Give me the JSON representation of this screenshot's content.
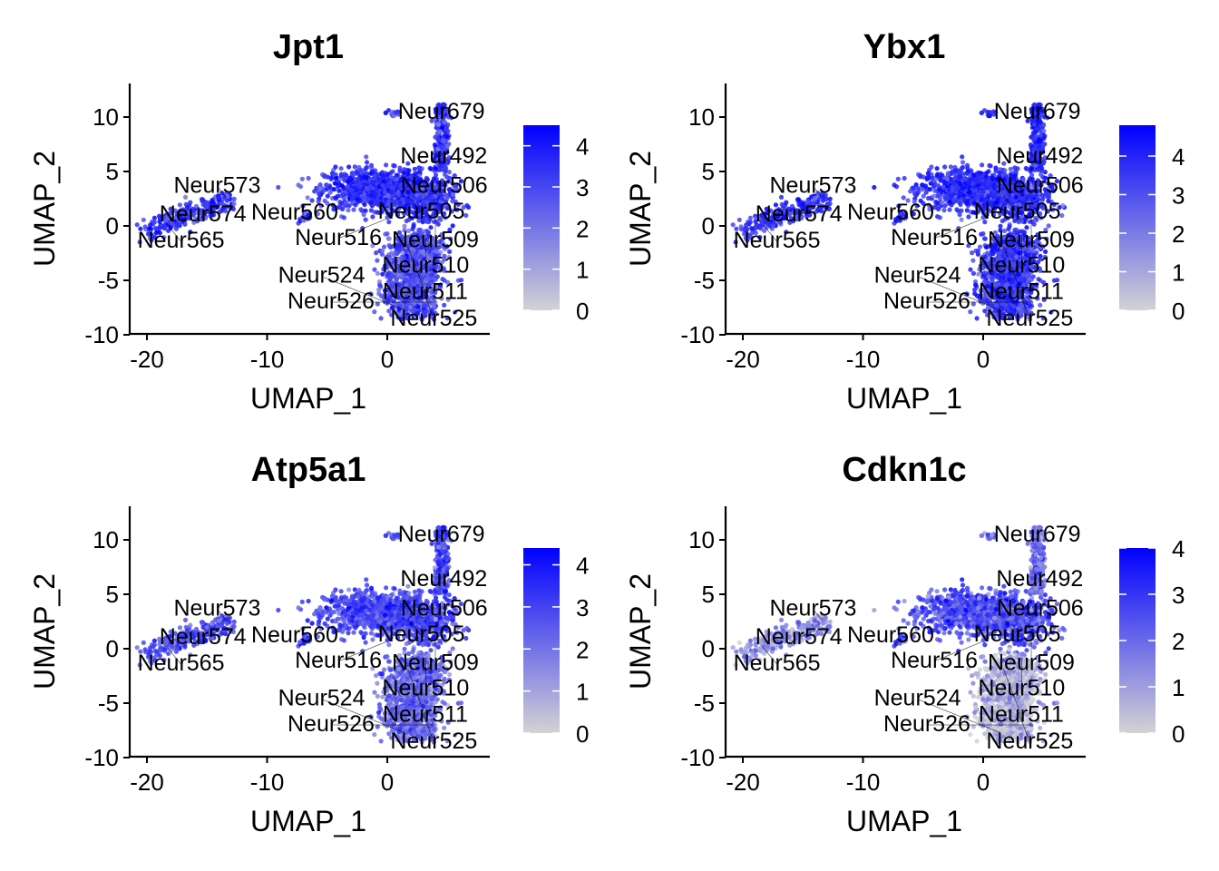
{
  "chart_data": [
    {
      "type": "scatter",
      "title": "Jpt1",
      "xlabel": "UMAP_1",
      "ylabel": "UMAP_2",
      "xlim": [
        -21.4,
        8.5
      ],
      "ylim": [
        -10,
        13.1
      ],
      "xticks": [
        -20,
        -10,
        0
      ],
      "yticks": [
        -10,
        -5,
        0,
        5,
        10
      ],
      "legend": {
        "position": "right",
        "min": 0,
        "max": 4.5,
        "ticks": [
          0,
          1,
          2,
          3,
          4
        ]
      },
      "expression_level": {
        "left_arm": 3.4,
        "center": 3.5,
        "top_strip": 3.4,
        "bottom": 2.9
      },
      "grid": false
    },
    {
      "type": "scatter",
      "title": "Ybx1",
      "xlabel": "UMAP_1",
      "ylabel": "UMAP_2",
      "xlim": [
        -21.4,
        8.5
      ],
      "ylim": [
        -10,
        13.1
      ],
      "xticks": [
        -20,
        -10,
        0
      ],
      "yticks": [
        -10,
        -5,
        0,
        5,
        10
      ],
      "legend": {
        "position": "right",
        "min": 0,
        "max": 4.8,
        "ticks": [
          0,
          1,
          2,
          3,
          4
        ]
      },
      "expression_level": {
        "left_arm": 3.7,
        "center": 3.8,
        "top_strip": 3.8,
        "bottom": 3.6
      },
      "grid": false
    },
    {
      "type": "scatter",
      "title": "Atp5a1",
      "xlabel": "UMAP_1",
      "ylabel": "UMAP_2",
      "xlim": [
        -21.4,
        8.5
      ],
      "ylim": [
        -10,
        13.1
      ],
      "xticks": [
        -20,
        -10,
        0
      ],
      "yticks": [
        -10,
        -5,
        0,
        5,
        10
      ],
      "legend": {
        "position": "right",
        "min": 0,
        "max": 4.4,
        "ticks": [
          0,
          1,
          2,
          3,
          4
        ]
      },
      "expression_level": {
        "left_arm": 2.8,
        "center": 3.0,
        "top_strip": 2.9,
        "bottom": 2.2
      },
      "grid": false
    },
    {
      "type": "scatter",
      "title": "Cdkn1c",
      "xlabel": "UMAP_1",
      "ylabel": "UMAP_2",
      "xlim": [
        -21.4,
        8.5
      ],
      "ylim": [
        -10,
        13.1
      ],
      "xticks": [
        -20,
        -10,
        0
      ],
      "yticks": [
        -10,
        -5,
        0,
        5,
        10
      ],
      "legend": {
        "position": "right",
        "min": 0,
        "max": 4.0,
        "ticks": [
          0,
          1,
          2,
          3,
          4
        ]
      },
      "expression_level": {
        "left_arm": 1.4,
        "center": 2.6,
        "top_strip": 2.0,
        "bottom": 0.6
      },
      "grid": false
    }
  ],
  "cluster_labels": [
    {
      "text": "Neur679",
      "x": 4.5,
      "y": 10.4
    },
    {
      "text": "Neur492",
      "x": 4.8,
      "y": 6.6
    },
    {
      "text": "Neur506",
      "x": 5.1,
      "y": 3.7
    },
    {
      "text": "Neur505",
      "x": 1.7,
      "y": 2.75
    },
    {
      "text": "Neur509",
      "x": 4.0,
      "y": 1.25
    },
    {
      "text": "Neur516",
      "x": -0.15,
      "y": 0.6
    },
    {
      "text": "Neur510",
      "x": 3.2,
      "y": -0.8
    },
    {
      "text": "Neur511",
      "x": 1.7,
      "y": -1.9
    },
    {
      "text": "Neur560",
      "x": -7.7,
      "y": 0.6
    },
    {
      "text": "Neur573",
      "x": -13.4,
      "y": 2.6
    },
    {
      "text": "Neur574",
      "x": -13.7,
      "y": 1.75
    },
    {
      "text": "Neur565",
      "x": -18.3,
      "y": 0.1
    },
    {
      "text": "Neur525",
      "x": 2.9,
      "y": -5.75
    },
    {
      "text": "Neur526",
      "x": 4.0,
      "y": -7.0
    },
    {
      "text": "Neur524",
      "x": 1.4,
      "y": -7.7
    }
  ],
  "colors": {
    "low": "#d3d3d3",
    "high": "#0000ff",
    "axis": "#000000"
  }
}
